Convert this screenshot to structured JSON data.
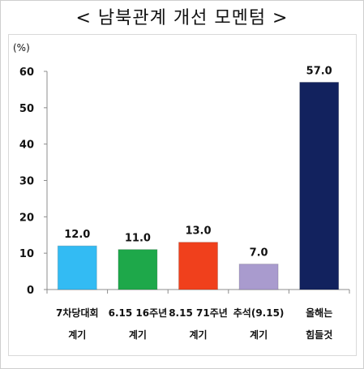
{
  "chart_data": {
    "type": "bar",
    "title": "< 남북관계 개선 모멘텀 >",
    "unit_label": "(%)",
    "categories": [
      [
        "7차당대회",
        "계기"
      ],
      [
        "6.15 16주년",
        "계기"
      ],
      [
        "8.15 71주년",
        "계기"
      ],
      [
        "추석(9.15)",
        "계기"
      ],
      [
        "올해는",
        "힘들것"
      ]
    ],
    "values": [
      12.0,
      11.0,
      13.0,
      7.0,
      57.0
    ],
    "value_labels": [
      "12.0",
      "11.0",
      "13.0",
      "7.0",
      "57.0"
    ],
    "colors": [
      "#33bbf3",
      "#1ea84a",
      "#f0401c",
      "#a99bce",
      "#12225e"
    ],
    "ylim": [
      0,
      60
    ],
    "yticks": [
      0,
      10,
      20,
      30,
      40,
      50,
      60
    ],
    "grid": false,
    "legend": "none"
  }
}
